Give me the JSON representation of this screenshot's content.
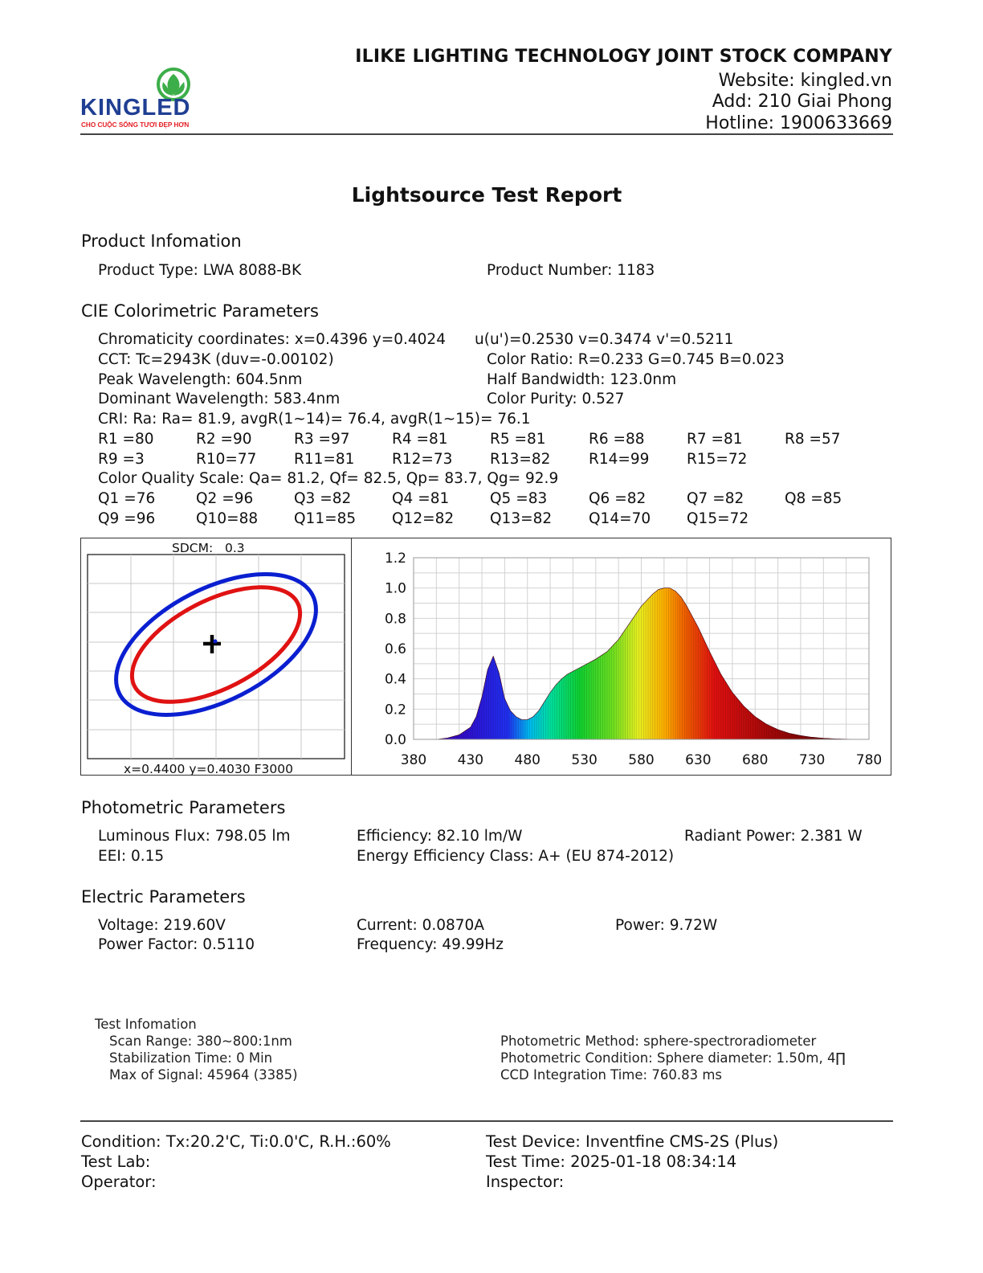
{
  "header": {
    "logo_text": "KINGLED",
    "logo_tagline": "CHO CUỘC SỐNG TƯƠI ĐẸP HƠN",
    "company": "ILIKE LIGHTING TECHNOLOGY JOINT STOCK COMPANY",
    "website": "Website: kingled.vn",
    "address": "Add: 210 Giai Phong",
    "hotline": "Hotline: 1900633669"
  },
  "title": "Lightsource Test Report",
  "product": {
    "heading": "Product Infomation",
    "type": "Product Type: LWA 8088-BK",
    "number": "Product Number: 1183"
  },
  "cie": {
    "heading": "CIE Colorimetric Parameters",
    "chromaticity": "Chromaticity coordinates: x=0.4396 y=0.4024",
    "uv": "u(u')=0.2530 v=0.3474 v'=0.5211",
    "cct": "CCT: Tc=2943K (duv=-0.00102)",
    "color_ratio": "Color Ratio: R=0.233  G=0.745  B=0.023",
    "peak": "Peak Wavelength: 604.5nm",
    "half_bw": "Half Bandwidth: 123.0nm",
    "dominant": "Dominant Wavelength: 583.4nm",
    "purity": "Color Purity: 0.527",
    "cri": "CRI: Ra: Ra= 81.9, avgR(1~14)= 76.4, avgR(1~15)= 76.1",
    "r_row1": [
      "R1 =80",
      "R2 =90",
      "R3 =97",
      "R4 =81",
      "R5 =81",
      "R6 =88",
      "R7 =81",
      "R8 =57"
    ],
    "r_row2": [
      "R9 =3",
      "R10=77",
      "R11=81",
      "R12=73",
      "R13=82",
      "R14=99",
      "R15=72"
    ],
    "cqs": "Color Quality Scale: Qa= 81.2, Qf= 82.5, Qp= 83.7, Qg= 92.9",
    "q_row1": [
      "Q1 =76",
      "Q2 =96",
      "Q3 =82",
      "Q4 =81",
      "Q5 =83",
      "Q6 =82",
      "Q7 =82",
      "Q8 =85"
    ],
    "q_row2": [
      "Q9 =96",
      "Q10=88",
      "Q11=85",
      "Q12=82",
      "Q13=82",
      "Q14=70",
      "Q15=72"
    ]
  },
  "sdcm": {
    "label": "SDCM:   0.3",
    "footer": "x=0.4400 y=0.4030 F3000"
  },
  "chart_data": {
    "type": "area",
    "title": "",
    "xlabel": "",
    "ylabel": "",
    "x_ticks": [
      "380",
      "430",
      "480",
      "530",
      "580",
      "630",
      "680",
      "730",
      "780"
    ],
    "y_ticks": [
      "0.0",
      "0.2",
      "0.4",
      "0.6",
      "0.8",
      "1.0",
      "1.2"
    ],
    "xlim": [
      380,
      780
    ],
    "ylim": [
      0,
      1.2
    ],
    "grid": true,
    "x": [
      400,
      410,
      420,
      430,
      435,
      440,
      445,
      450,
      455,
      460,
      465,
      470,
      475,
      480,
      485,
      490,
      495,
      500,
      505,
      510,
      515,
      520,
      530,
      540,
      550,
      560,
      570,
      580,
      590,
      595,
      600,
      605,
      610,
      615,
      620,
      630,
      640,
      650,
      660,
      670,
      680,
      690,
      700,
      710,
      720,
      730,
      740,
      750,
      760,
      770
    ],
    "y": [
      0.0,
      0.01,
      0.03,
      0.08,
      0.15,
      0.28,
      0.46,
      0.55,
      0.44,
      0.27,
      0.19,
      0.15,
      0.13,
      0.13,
      0.15,
      0.19,
      0.25,
      0.31,
      0.36,
      0.4,
      0.43,
      0.45,
      0.49,
      0.53,
      0.58,
      0.66,
      0.77,
      0.88,
      0.96,
      0.99,
      1.0,
      1.0,
      0.98,
      0.94,
      0.88,
      0.74,
      0.58,
      0.43,
      0.31,
      0.22,
      0.15,
      0.1,
      0.065,
      0.04,
      0.025,
      0.014,
      0.008,
      0.004,
      0.002,
      0.0
    ]
  },
  "photometric": {
    "heading": "Photometric Parameters",
    "flux": "Luminous Flux: 798.05 lm",
    "efficiency": "Efficiency: 82.10 lm/W",
    "radiant": "Radiant Power: 2.381 W",
    "eei": "EEI:  0.15",
    "energy_class": "Energy Efficiency Class: A+ (EU 874-2012)"
  },
  "electric": {
    "heading": "Electric Parameters",
    "voltage": "Voltage: 219.60V",
    "current": "Current: 0.0870A",
    "power": "Power: 9.72W",
    "pf": "Power Factor: 0.5110",
    "frequency": "Frequency: 49.99Hz"
  },
  "test_info": {
    "heading": "Test Infomation",
    "scan": "Scan Range: 380~800:1nm",
    "stabilization": "Stabilization Time: 0 Min",
    "max_signal": "Max of Signal: 45964 (3385)",
    "method": "Photometric Method: sphere-spectroradiometer",
    "condition": "Photometric Condition: Sphere diameter: 1.50m, 4∏",
    "ccd": "CCD Integration Time: 760.83 ms"
  },
  "footer": {
    "condition": "Condition: Tx:20.2'C, Ti:0.0'C, R.H.:60%",
    "device": "Test Device: Inventfine CMS-2S (Plus)",
    "lab": "Test Lab:",
    "time": "Test Time: 2025-01-18 08:34:14",
    "operator": "Operator:",
    "inspector": "Inspector:"
  },
  "colors": {
    "logo_blue": "#1f3f93",
    "logo_green": "#3cae49",
    "logo_red": "#e31e24",
    "ellipse_outer": "#0a1fd0",
    "ellipse_inner": "#e01212"
  }
}
